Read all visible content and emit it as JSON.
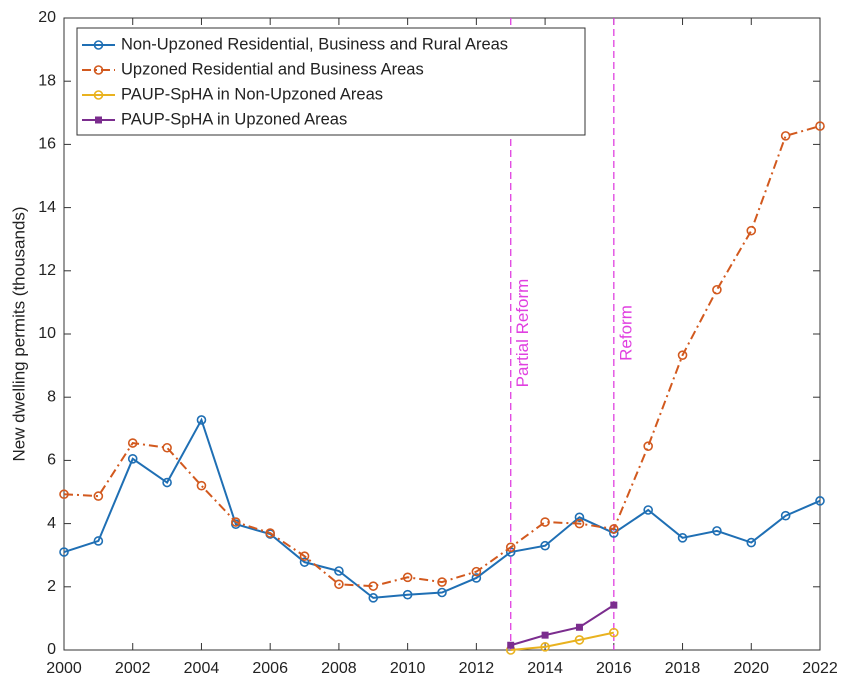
{
  "chart_data": {
    "type": "line",
    "y_label": "New dwelling permits (thousands)",
    "x": [
      2000,
      2001,
      2002,
      2003,
      2004,
      2005,
      2006,
      2007,
      2008,
      2009,
      2010,
      2011,
      2012,
      2013,
      2014,
      2015,
      2016,
      2017,
      2018,
      2019,
      2020,
      2021,
      2022
    ],
    "series": [
      {
        "name": "Non-Upzoned Residential, Business and Rural Areas",
        "color": "#1f6fb4",
        "dash": "solid",
        "marker": "circle",
        "values": [
          3.1,
          3.45,
          6.05,
          5.3,
          7.28,
          3.98,
          3.67,
          2.78,
          2.5,
          1.65,
          1.75,
          1.82,
          2.28,
          3.1,
          3.3,
          4.2,
          3.7,
          4.43,
          3.55,
          3.77,
          3.4,
          4.25,
          4.72
        ]
      },
      {
        "name": "Upzoned Residential and Business Areas",
        "color": "#d2591e",
        "dash": "dashdot",
        "marker": "circle",
        "values": [
          4.93,
          4.87,
          6.55,
          6.4,
          5.2,
          4.05,
          3.7,
          2.97,
          2.08,
          2.02,
          2.3,
          2.15,
          2.48,
          3.25,
          4.05,
          4.0,
          3.83,
          6.45,
          9.33,
          11.4,
          13.27,
          16.27,
          16.58
        ]
      },
      {
        "name": "PAUP-SpHA in Non-Upzoned Areas",
        "color": "#e9b21f",
        "dash": "solid",
        "marker": "circle",
        "values": [
          null,
          null,
          null,
          null,
          null,
          null,
          null,
          null,
          null,
          null,
          null,
          null,
          null,
          0.0,
          0.1,
          0.32,
          0.55,
          null,
          null,
          null,
          null,
          null,
          null
        ]
      },
      {
        "name": "PAUP-SpHA in Upzoned Areas",
        "color": "#7b2d8e",
        "dash": "solid",
        "marker": "square",
        "values": [
          null,
          null,
          null,
          null,
          null,
          null,
          null,
          null,
          null,
          null,
          null,
          null,
          null,
          0.15,
          0.47,
          0.72,
          1.42,
          null,
          null,
          null,
          null,
          null,
          null
        ]
      }
    ],
    "annotations": [
      {
        "text": "Partial Reform",
        "x": 2013,
        "color": "#e040e0"
      },
      {
        "text": "Reform",
        "x": 2016,
        "color": "#e040e0"
      }
    ],
    "xlim": [
      2000,
      2022
    ],
    "xticks": [
      2000,
      2002,
      2004,
      2006,
      2008,
      2010,
      2012,
      2014,
      2016,
      2018,
      2020,
      2022
    ],
    "ylim": [
      0,
      20
    ],
    "yticks": [
      0,
      2,
      4,
      6,
      8,
      10,
      12,
      14,
      16,
      18,
      20
    ],
    "grid": false,
    "legend": "upper left"
  }
}
